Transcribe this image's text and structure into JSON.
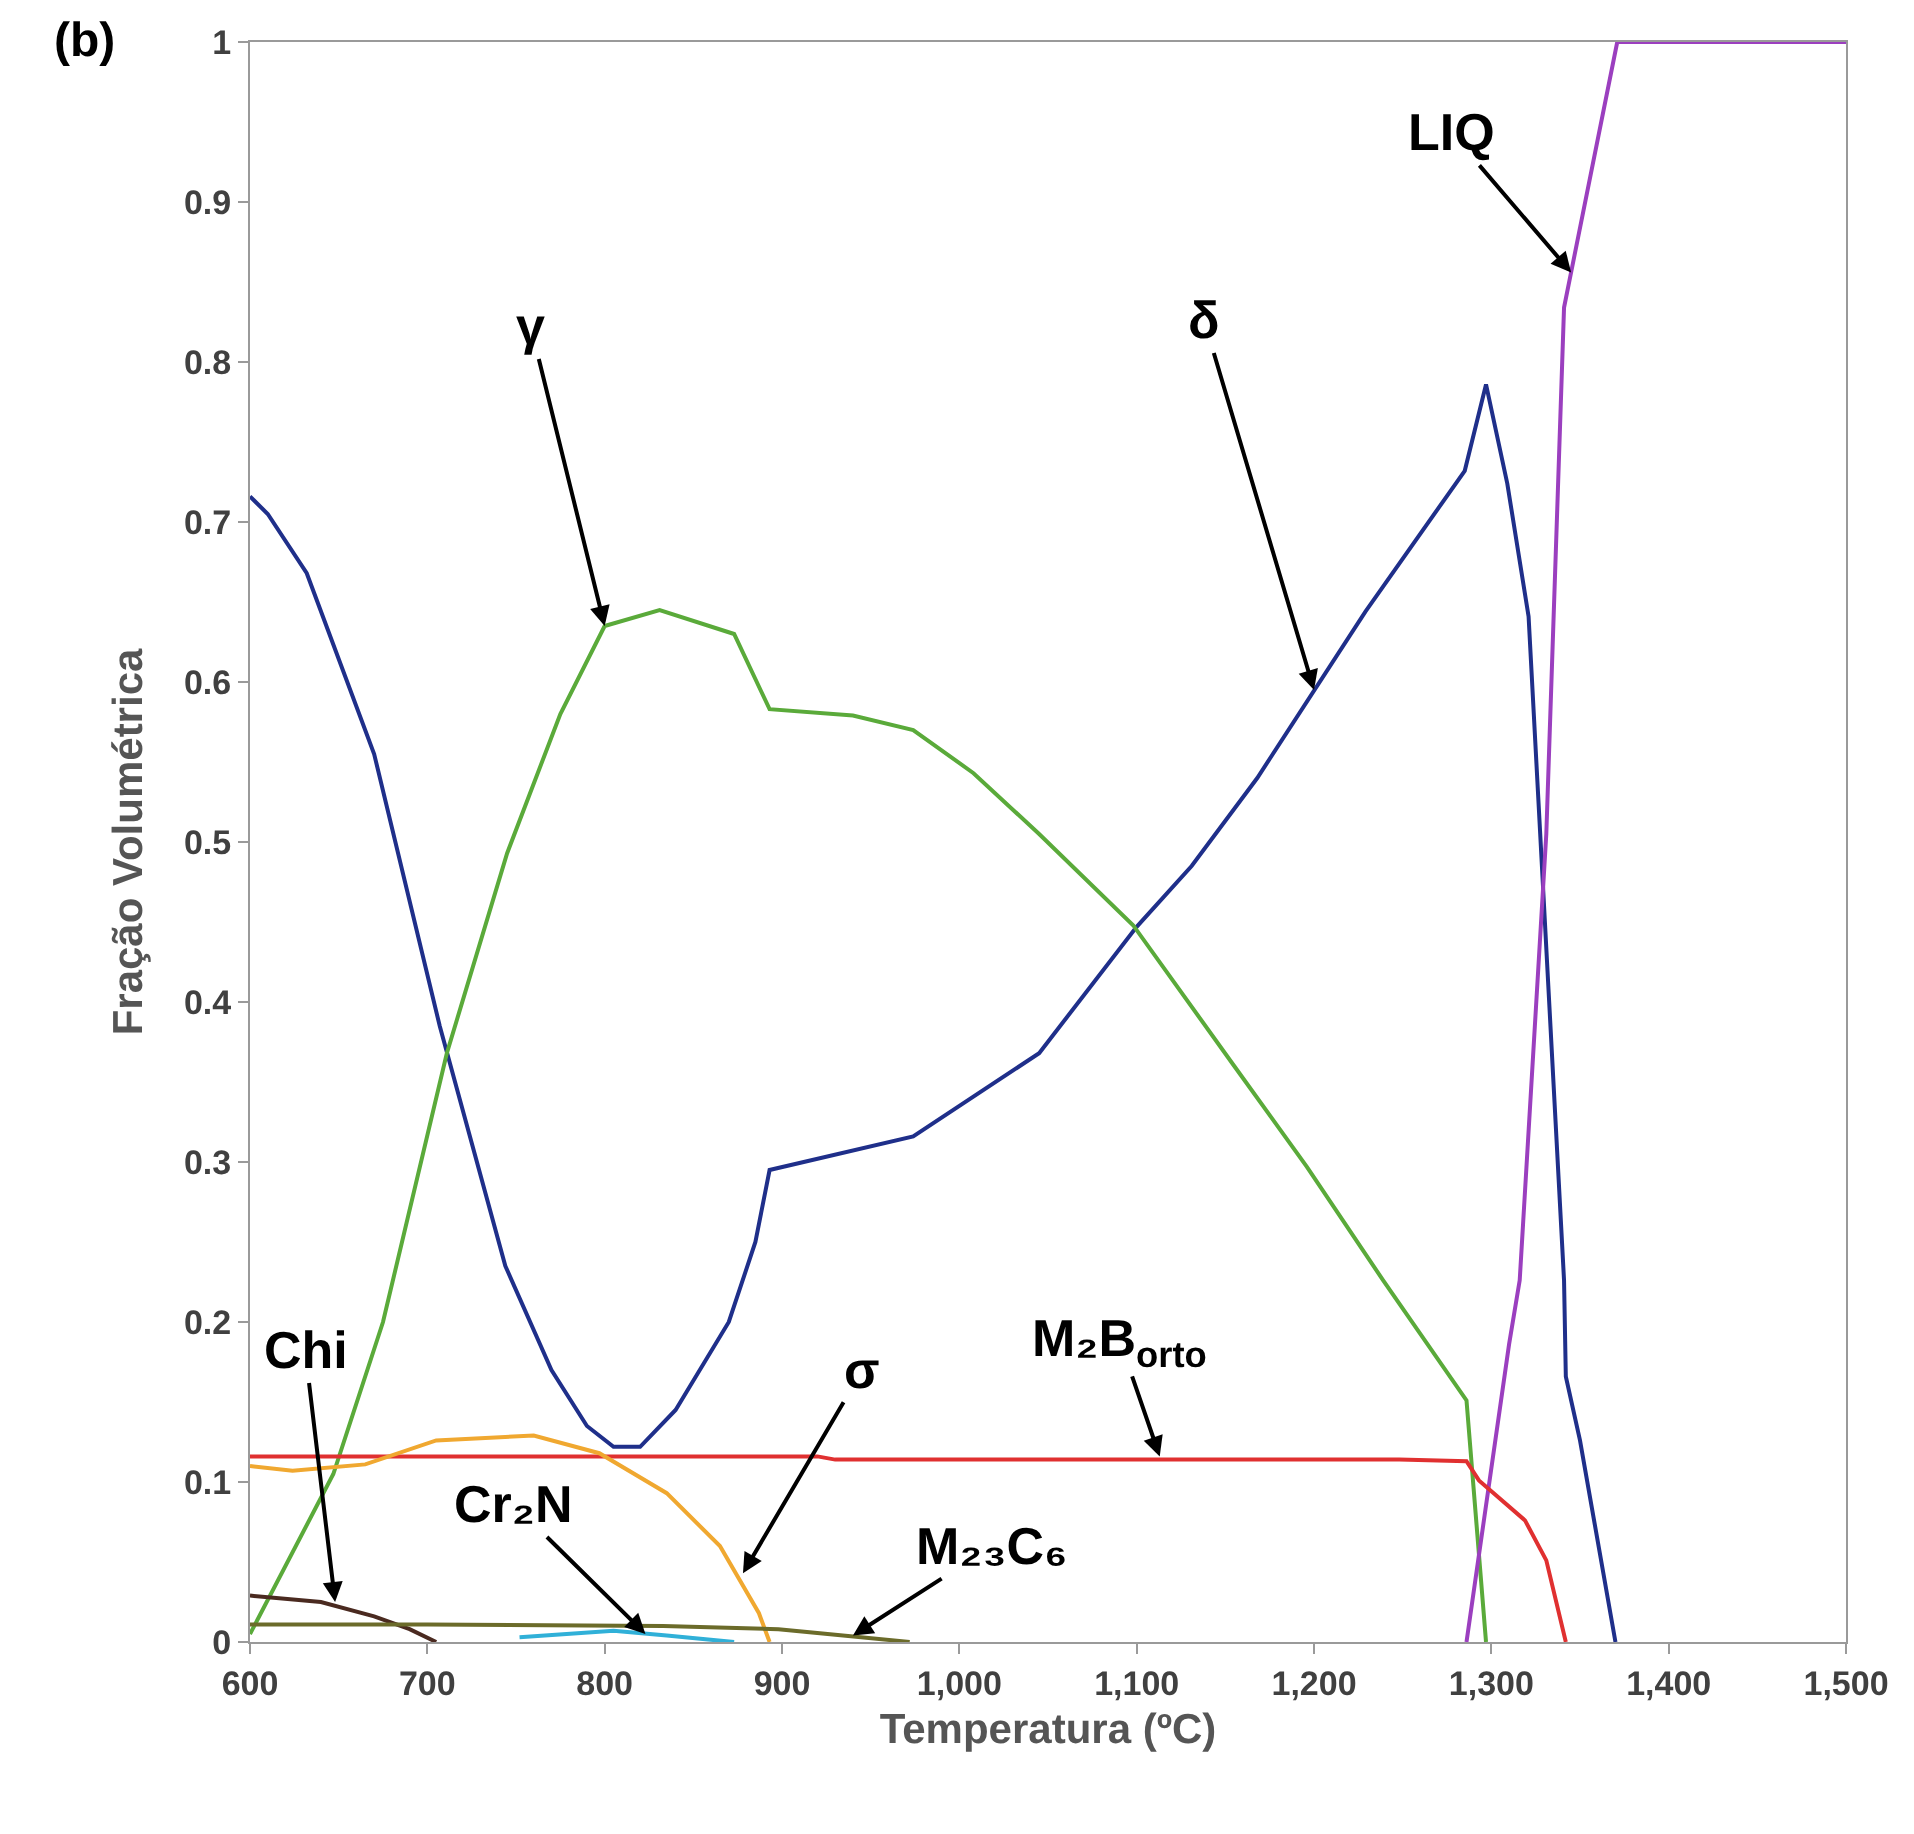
{
  "chart_data": {
    "type": "line",
    "xlabel": "Temperatura (ºC)",
    "ylabel": "Fração Volumétrica",
    "xlim": [
      600,
      1500
    ],
    "ylim": [
      0,
      1
    ],
    "xticks": [
      600,
      700,
      800,
      900,
      {
        "value": 1000,
        "label": "1,000"
      },
      {
        "value": 1100,
        "label": "1,100"
      },
      {
        "value": 1200,
        "label": "1,200"
      },
      {
        "value": 1300,
        "label": "1,300"
      },
      {
        "value": 1400,
        "label": "1,400"
      },
      {
        "value": 1500,
        "label": "1,500"
      }
    ],
    "yticks": [
      0,
      0.1,
      0.2,
      0.3,
      0.4,
      0.5,
      0.6,
      0.7,
      0.8,
      0.9,
      1
    ],
    "marker": "none",
    "line_style": "solid",
    "series": [
      {
        "color": "#1f2f8a",
        "x": [
          600,
          610,
          632,
          670,
          707,
          744,
          770,
          790,
          805,
          820,
          840,
          870,
          885,
          893,
          974,
          1045,
          1100,
          1131,
          1168,
          1229,
          1285,
          1297,
          1309,
          1321,
          1341,
          1342,
          1350,
          1370
        ],
        "values": [
          0.716,
          0.705,
          0.668,
          0.555,
          0.385,
          0.235,
          0.17,
          0.135,
          0.122,
          0.122,
          0.145,
          0.2,
          0.25,
          0.295,
          0.316,
          0.368,
          0.447,
          0.485,
          0.54,
          0.644,
          0.732,
          0.786,
          0.724,
          0.641,
          0.226,
          0.166,
          0.126,
          0
        ]
      },
      {
        "color": "#5aaa3a",
        "x": [
          600,
          647,
          675,
          711,
          745,
          775,
          800,
          831,
          873,
          893,
          940,
          974,
          1008,
          1045,
          1098,
          1155,
          1196,
          1239,
          1286,
          1297
        ],
        "values": [
          0.005,
          0.105,
          0.2,
          0.368,
          0.493,
          0.58,
          0.635,
          0.645,
          0.63,
          0.583,
          0.579,
          0.57,
          0.543,
          0.505,
          0.448,
          0.36,
          0.297,
          0.226,
          0.151,
          0
        ]
      },
      {
        "color": "#9b3fbf",
        "x": [
          1286,
          1310,
          1316,
          1331,
          1341,
          1371,
          1500
        ],
        "values": [
          0,
          0.186,
          0.226,
          0.505,
          0.834,
          1,
          1
        ]
      },
      {
        "color": "#e03030",
        "x": [
          600,
          920,
          930,
          1248,
          1286,
          1293,
          1319,
          1331,
          1342
        ],
        "values": [
          0.116,
          0.116,
          0.114,
          0.114,
          0.113,
          0.101,
          0.076,
          0.051,
          0
        ]
      },
      {
        "color": "#f0a830",
        "x": [
          600,
          624,
          665,
          705,
          760,
          797,
          835,
          865,
          887,
          893
        ],
        "values": [
          0.11,
          0.107,
          0.111,
          0.126,
          0.129,
          0.118,
          0.093,
          0.06,
          0.018,
          0
        ]
      },
      {
        "color": "#4a2a20",
        "x": [
          600,
          640,
          670,
          690,
          705
        ],
        "values": [
          0.029,
          0.025,
          0.016,
          0.008,
          0
        ]
      },
      {
        "color": "#30b0d8",
        "x": [
          752,
          805,
          835,
          873
        ],
        "values": [
          0.003,
          0.007,
          0.004,
          0
        ]
      },
      {
        "color": "#6b6b2a",
        "x": [
          600,
          700,
          833,
          898,
          917,
          972
        ],
        "values": [
          0.011,
          0.011,
          0.01,
          0.008,
          0.006,
          0
        ]
      }
    ],
    "annotations": [
      "(b)",
      {
        "text": "γ",
        "x": 800,
        "y": 0.635
      },
      {
        "text": "δ",
        "x": 1200,
        "y": 0.595
      },
      {
        "text": "LIQ",
        "x": 1345,
        "y": 0.856
      },
      {
        "text": "Chi",
        "x": 648,
        "y": 0.025
      },
      {
        "text": "σ",
        "x": 878,
        "y": 0.043
      },
      {
        "text": "Cr₂N",
        "x": 823,
        "y": 0.005
      },
      {
        "text": "M₂₃C₆",
        "x": 940,
        "y": 0.004
      },
      {
        "text": "M₂B$_{orto}$",
        "x": 1113,
        "y": 0.116
      }
    ]
  }
}
